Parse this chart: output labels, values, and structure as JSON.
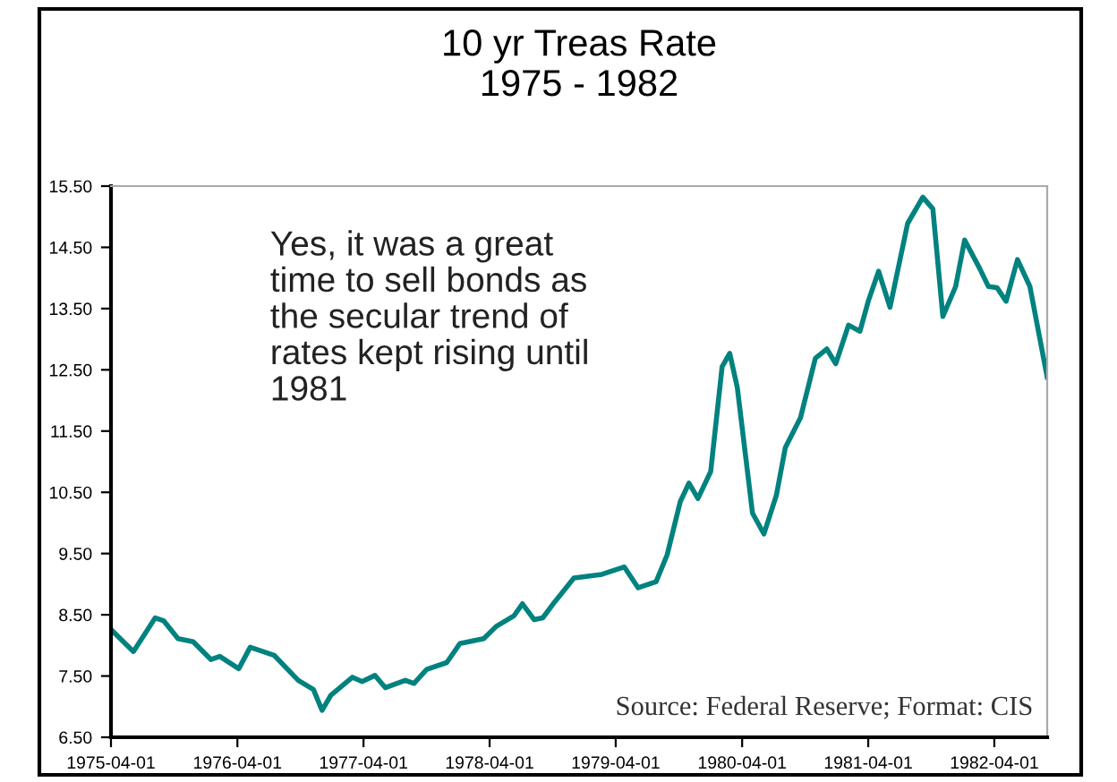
{
  "chart_data": {
    "type": "line",
    "title": "10 yr Treas Rate\n1975 - 1982",
    "x": [
      "1975-04-01",
      "1975-06-05",
      "1975-08-07",
      "1975-09-01",
      "1975-10-12",
      "1975-11-25",
      "1976-01-15",
      "1976-02-10",
      "1976-04-05",
      "1976-05-08",
      "1976-07-16",
      "1976-09-24",
      "1976-11-07",
      "1976-12-02",
      "1976-12-28",
      "1977-02-28",
      "1977-03-28",
      "1977-05-04",
      "1977-06-03",
      "1977-07-31",
      "1977-08-25",
      "1977-10-01",
      "1977-11-28",
      "1978-01-05",
      "1978-03-15",
      "1978-04-20",
      "1978-06-10",
      "1978-07-05",
      "1978-08-08",
      "1978-09-02",
      "1978-10-05",
      "1978-12-01",
      "1979-02-20",
      "1979-04-26",
      "1979-06-05",
      "1979-07-27",
      "1979-08-28",
      "1979-10-05",
      "1979-10-30",
      "1979-11-25",
      "1980-01-01",
      "1980-02-03",
      "1980-02-25",
      "1980-03-18",
      "1980-05-01",
      "1980-06-03",
      "1980-07-09",
      "1980-08-04",
      "1980-09-17",
      "1980-10-30",
      "1980-12-02",
      "1980-12-28",
      "1981-02-03",
      "1981-03-08",
      "1981-04-01",
      "1981-05-01",
      "1981-06-03",
      "1981-07-24",
      "1981-09-06",
      "1981-10-05",
      "1981-11-03",
      "1981-12-10",
      "1982-01-05",
      "1982-02-18",
      "1982-03-15",
      "1982-04-09",
      "1982-05-05",
      "1982-06-07",
      "1982-07-13",
      "1982-09-01"
    ],
    "series": [
      {
        "color": "#00827f",
        "values": [
          8.26,
          7.9,
          8.45,
          8.4,
          8.11,
          8.06,
          7.77,
          7.82,
          7.62,
          7.97,
          7.84,
          7.43,
          7.28,
          6.94,
          7.19,
          7.48,
          7.41,
          7.51,
          7.31,
          7.43,
          7.38,
          7.61,
          7.72,
          8.03,
          8.11,
          8.31,
          8.48,
          8.68,
          8.42,
          8.45,
          8.7,
          9.1,
          9.16,
          9.28,
          8.94,
          9.04,
          9.48,
          10.35,
          10.65,
          10.4,
          10.84,
          12.55,
          12.77,
          12.21,
          10.16,
          9.82,
          10.45,
          11.23,
          11.72,
          12.69,
          12.84,
          12.6,
          13.23,
          13.13,
          13.62,
          14.11,
          13.52,
          14.89,
          15.32,
          15.13,
          13.37,
          13.86,
          14.62,
          14.15,
          13.86,
          13.84,
          13.62,
          14.3,
          13.86,
          12.38
        ]
      }
    ],
    "xlim": [
      "1975-04-01",
      "1982-09-01"
    ],
    "xticks": [
      "1975-04-01",
      "1976-04-01",
      "1977-04-01",
      "1978-04-01",
      "1979-04-01",
      "1980-04-01",
      "1981-04-01",
      "1982-04-01"
    ],
    "ylim": [
      6.5,
      15.5
    ],
    "yticks": [
      {
        "value": 6.5,
        "label": "6.50"
      },
      {
        "value": 7.5,
        "label": "7.50"
      },
      {
        "value": 8.5,
        "label": "8.50"
      },
      {
        "value": 9.5,
        "label": "9.50"
      },
      {
        "value": 10.5,
        "label": "10.50"
      },
      {
        "value": 11.5,
        "label": "11.50"
      },
      {
        "value": 12.5,
        "label": "12.50"
      },
      {
        "value": 13.5,
        "label": "13.50"
      },
      {
        "value": 14.5,
        "label": "14.50"
      },
      {
        "value": 15.5,
        "label": "15.50"
      }
    ],
    "grid": false,
    "line_style": "solid",
    "marker": "none",
    "annotations": [
      "Yes, it was a great\ntime to sell bonds as\nthe secular trend of\nrates kept rising until\n1981",
      "Source: Federal Reserve; Format: CIS"
    ]
  }
}
